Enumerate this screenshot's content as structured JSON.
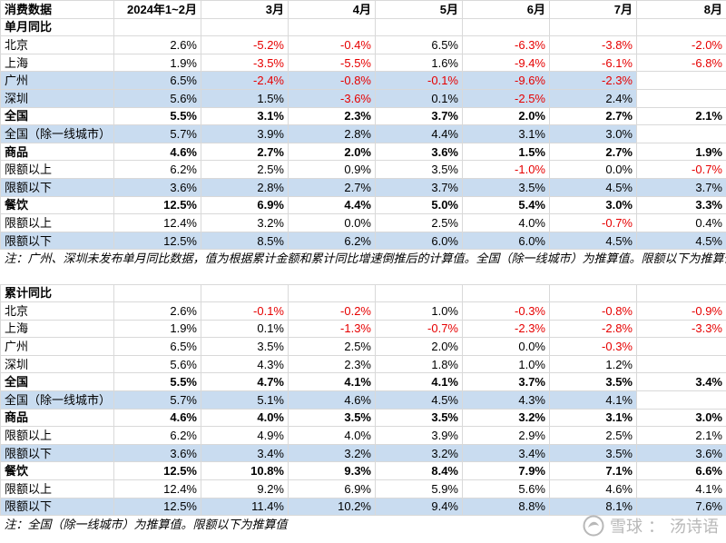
{
  "header": [
    "消费数据",
    "2024年1~2月",
    "3月",
    "4月",
    "5月",
    "6月",
    "7月",
    "8月"
  ],
  "section1": {
    "title": "单月同比",
    "rows": [
      {
        "label": "北京",
        "values": [
          "2.6%",
          "-5.2%",
          "-0.4%",
          "6.5%",
          "-6.3%",
          "-3.8%",
          "-2.0%"
        ],
        "style": "normal"
      },
      {
        "label": "上海",
        "values": [
          "1.9%",
          "-3.5%",
          "-5.5%",
          "1.6%",
          "-9.4%",
          "-6.1%",
          "-6.8%"
        ],
        "style": "normal"
      },
      {
        "label": "广州",
        "values": [
          "6.5%",
          "-2.4%",
          "-0.8%",
          "-0.1%",
          "-9.6%",
          "-2.3%",
          ""
        ],
        "style": "highlight"
      },
      {
        "label": "深圳",
        "values": [
          "5.6%",
          "1.5%",
          "-3.6%",
          "0.1%",
          "-2.5%",
          "2.4%",
          ""
        ],
        "style": "highlight"
      },
      {
        "label": "全国",
        "values": [
          "5.5%",
          "3.1%",
          "2.3%",
          "3.7%",
          "2.0%",
          "2.7%",
          "2.1%"
        ],
        "style": "bold"
      },
      {
        "label": "全国（除一线城市）",
        "values": [
          "5.7%",
          "3.9%",
          "2.8%",
          "4.4%",
          "3.1%",
          "3.0%",
          ""
        ],
        "style": "highlight"
      },
      {
        "label": "商品",
        "values": [
          "4.6%",
          "2.7%",
          "2.0%",
          "3.6%",
          "1.5%",
          "2.7%",
          "1.9%"
        ],
        "style": "bold"
      },
      {
        "label": "限额以上",
        "values": [
          "6.2%",
          "2.5%",
          "0.9%",
          "3.5%",
          "-1.0%",
          "0.0%",
          "-0.7%"
        ],
        "style": "indent"
      },
      {
        "label": "限额以下",
        "values": [
          "3.6%",
          "2.8%",
          "2.7%",
          "3.7%",
          "3.5%",
          "4.5%",
          "3.7%"
        ],
        "style": "indent-highlight"
      },
      {
        "label": "餐饮",
        "values": [
          "12.5%",
          "6.9%",
          "4.4%",
          "5.0%",
          "5.4%",
          "3.0%",
          "3.3%"
        ],
        "style": "bold"
      },
      {
        "label": "限额以上",
        "values": [
          "12.4%",
          "3.2%",
          "0.0%",
          "2.5%",
          "4.0%",
          "-0.7%",
          "0.4%"
        ],
        "style": "indent"
      },
      {
        "label": "限额以下",
        "values": [
          "12.5%",
          "8.5%",
          "6.2%",
          "6.0%",
          "6.0%",
          "4.5%",
          "4.5%"
        ],
        "style": "indent-highlight"
      }
    ],
    "note": "注：广州、深圳未发布单月同比数据，值为根据累计金额和累计同比增速倒推后的计算值。全国（除一线城市）为推算值。限额以下为推算值"
  },
  "section2": {
    "title": "累计同比",
    "rows": [
      {
        "label": "北京",
        "values": [
          "2.6%",
          "-0.1%",
          "-0.2%",
          "1.0%",
          "-0.3%",
          "-0.8%",
          "-0.9%"
        ],
        "style": "normal"
      },
      {
        "label": "上海",
        "values": [
          "1.9%",
          "0.1%",
          "-1.3%",
          "-0.7%",
          "-2.3%",
          "-2.8%",
          "-3.3%"
        ],
        "style": "normal"
      },
      {
        "label": "广州",
        "values": [
          "6.5%",
          "3.5%",
          "2.5%",
          "2.0%",
          "0.0%",
          "-0.3%",
          ""
        ],
        "style": "normal"
      },
      {
        "label": "深圳",
        "values": [
          "5.6%",
          "4.3%",
          "2.3%",
          "1.8%",
          "1.0%",
          "1.2%",
          ""
        ],
        "style": "normal"
      },
      {
        "label": "全国",
        "values": [
          "5.5%",
          "4.7%",
          "4.1%",
          "4.1%",
          "3.7%",
          "3.5%",
          "3.4%"
        ],
        "style": "bold"
      },
      {
        "label": "全国（除一线城市）",
        "values": [
          "5.7%",
          "5.1%",
          "4.6%",
          "4.5%",
          "4.3%",
          "4.1%",
          ""
        ],
        "style": "highlight"
      },
      {
        "label": "商品",
        "values": [
          "4.6%",
          "4.0%",
          "3.5%",
          "3.5%",
          "3.2%",
          "3.1%",
          "3.0%"
        ],
        "style": "bold"
      },
      {
        "label": "限额以上",
        "values": [
          "6.2%",
          "4.9%",
          "4.0%",
          "3.9%",
          "2.9%",
          "2.5%",
          "2.1%"
        ],
        "style": "indent"
      },
      {
        "label": "限额以下",
        "values": [
          "3.6%",
          "3.4%",
          "3.2%",
          "3.2%",
          "3.4%",
          "3.5%",
          "3.6%"
        ],
        "style": "indent-highlight"
      },
      {
        "label": "餐饮",
        "values": [
          "12.5%",
          "10.8%",
          "9.3%",
          "8.4%",
          "7.9%",
          "7.1%",
          "6.6%"
        ],
        "style": "bold"
      },
      {
        "label": "限额以上",
        "values": [
          "12.4%",
          "9.2%",
          "6.9%",
          "5.9%",
          "5.6%",
          "4.6%",
          "4.1%"
        ],
        "style": "indent"
      },
      {
        "label": "限额以下",
        "values": [
          "12.5%",
          "11.4%",
          "10.2%",
          "9.4%",
          "8.8%",
          "8.1%",
          "7.6%"
        ],
        "style": "indent-highlight"
      }
    ],
    "note": "注：全国（除一线城市）为推算值。限额以下为推算值"
  },
  "watermark": {
    "site": "雪球",
    "separator": "：",
    "author": "汤诗语"
  }
}
